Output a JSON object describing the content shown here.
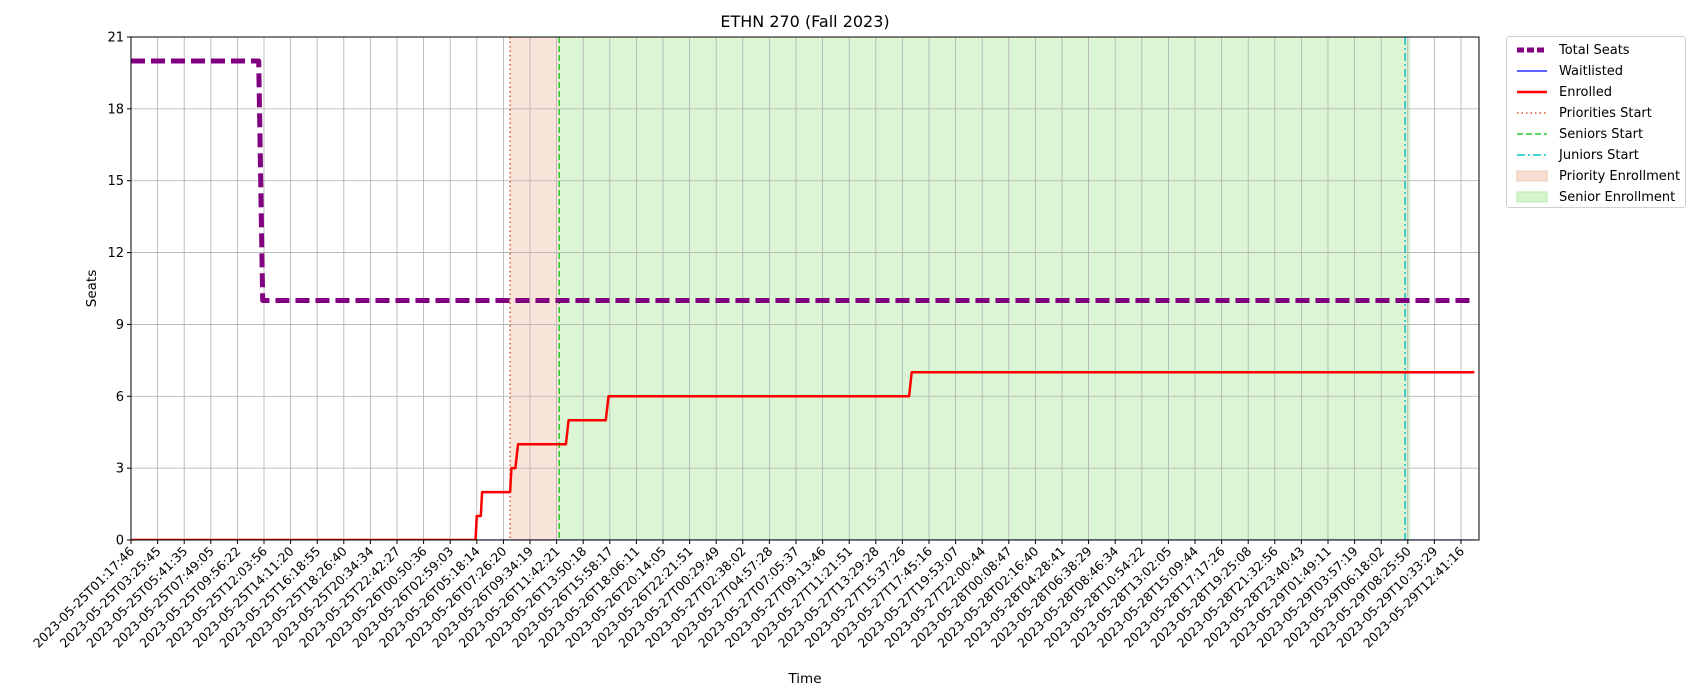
{
  "chart_data": {
    "type": "line",
    "title": "ETHN 270 (Fall 2023)",
    "xlabel": "Time",
    "ylabel": "Seats",
    "ylim": [
      0,
      21
    ],
    "yticks": [
      0,
      3,
      6,
      9,
      12,
      15,
      18,
      21
    ],
    "grid": true,
    "legend_placement": "outside-top-right",
    "xtick_labels": [
      "2023-05-25T01:17:46",
      "2023-05-25T03:25:45",
      "2023-05-25T05:41:35",
      "2023-05-25T07:49:05",
      "2023-05-25T09:56:22",
      "2023-05-25T12:03:56",
      "2023-05-25T14:11:20",
      "2023-05-25T16:18:55",
      "2023-05-25T18:26:40",
      "2023-05-25T20:34:34",
      "2023-05-25T22:42:27",
      "2023-05-26T00:50:36",
      "2023-05-26T02:59:03",
      "2023-05-26T05:18:14",
      "2023-05-26T07:26:20",
      "2023-05-26T09:34:19",
      "2023-05-26T11:42:21",
      "2023-05-26T13:50:18",
      "2023-05-26T15:58:17",
      "2023-05-26T18:06:11",
      "2023-05-26T20:14:05",
      "2023-05-26T22:21:51",
      "2023-05-27T00:29:49",
      "2023-05-27T02:38:02",
      "2023-05-27T04:57:28",
      "2023-05-27T07:05:37",
      "2023-05-27T09:13:46",
      "2023-05-27T11:21:51",
      "2023-05-27T13:29:28",
      "2023-05-27T15:37:26",
      "2023-05-27T17:45:16",
      "2023-05-27T19:53:07",
      "2023-05-27T22:00:44",
      "2023-05-28T00:08:47",
      "2023-05-28T02:16:40",
      "2023-05-28T04:28:41",
      "2023-05-28T06:38:29",
      "2023-05-28T08:46:34",
      "2023-05-28T10:54:22",
      "2023-05-28T13:02:05",
      "2023-05-28T15:09:44",
      "2023-05-28T17:17:26",
      "2023-05-28T19:25:08",
      "2023-05-28T21:32:56",
      "2023-05-28T23:40:43",
      "2023-05-29T01:49:11",
      "2023-05-29T03:57:19",
      "2023-05-29T06:18:02",
      "2023-05-29T08:25:50",
      "2023-05-29T10:33:29",
      "2023-05-29T12:41:16"
    ],
    "series": [
      {
        "name": "Total Seats",
        "color": "#800080",
        "style": "dashed-thick",
        "points": [
          [
            0,
            20
          ],
          [
            4.8,
            20
          ],
          [
            4.95,
            10
          ],
          [
            50.5,
            10
          ]
        ]
      },
      {
        "name": "Waitlisted",
        "color": "#0000ff",
        "style": "solid",
        "points": [
          [
            0,
            0
          ],
          [
            50.5,
            0
          ]
        ]
      },
      {
        "name": "Enrolled",
        "color": "#ff0000",
        "style": "solid-thick",
        "points": [
          [
            0,
            0
          ],
          [
            12.95,
            0
          ],
          [
            13.0,
            1
          ],
          [
            13.15,
            1
          ],
          [
            13.2,
            2
          ],
          [
            14.25,
            2
          ],
          [
            14.3,
            3
          ],
          [
            14.45,
            3
          ],
          [
            14.55,
            4
          ],
          [
            16.35,
            4
          ],
          [
            16.45,
            5
          ],
          [
            17.85,
            5
          ],
          [
            17.95,
            6
          ],
          [
            29.25,
            6
          ],
          [
            29.35,
            7
          ],
          [
            50.5,
            7
          ]
        ]
      }
    ],
    "vlines": [
      {
        "name": "Priorities Start",
        "x": 14.25,
        "color": "#e0502a",
        "dash": "1.5,3"
      },
      {
        "name": "Seniors Start",
        "x": 16.1,
        "color": "#22cc22",
        "dash": "6,3"
      },
      {
        "name": "Juniors Start",
        "x": 47.9,
        "color": "#17bfbf",
        "dash": "8,3,2,3"
      }
    ],
    "spans": [
      {
        "name": "Priority Enrollment",
        "x0": 14.25,
        "x1": 16.1,
        "color": "#f3c9b4"
      },
      {
        "name": "Senior Enrollment",
        "x0": 16.1,
        "x1": 48.1,
        "color": "#b7ecab"
      }
    ],
    "legend": [
      {
        "label": "Total Seats",
        "kind": "line",
        "color": "#800080",
        "width": 5,
        "dash": "7,3"
      },
      {
        "label": "Waitlisted",
        "kind": "line",
        "color": "#0000ff",
        "width": 1.2,
        "dash": ""
      },
      {
        "label": "Enrolled",
        "kind": "line",
        "color": "#ff0000",
        "width": 2.5,
        "dash": ""
      },
      {
        "label": "Priorities Start",
        "kind": "line",
        "color": "#e0502a",
        "width": 1.5,
        "dash": "1.5,3"
      },
      {
        "label": "Seniors Start",
        "kind": "line",
        "color": "#22cc22",
        "width": 1.5,
        "dash": "6,3"
      },
      {
        "label": "Juniors Start",
        "kind": "line",
        "color": "#17bfbf",
        "width": 1.5,
        "dash": "8,3,2,3"
      },
      {
        "label": "Priority Enrollment",
        "kind": "patch",
        "color": "#f3c9b4"
      },
      {
        "label": "Senior Enrollment",
        "kind": "patch",
        "color": "#b7ecab"
      }
    ]
  }
}
